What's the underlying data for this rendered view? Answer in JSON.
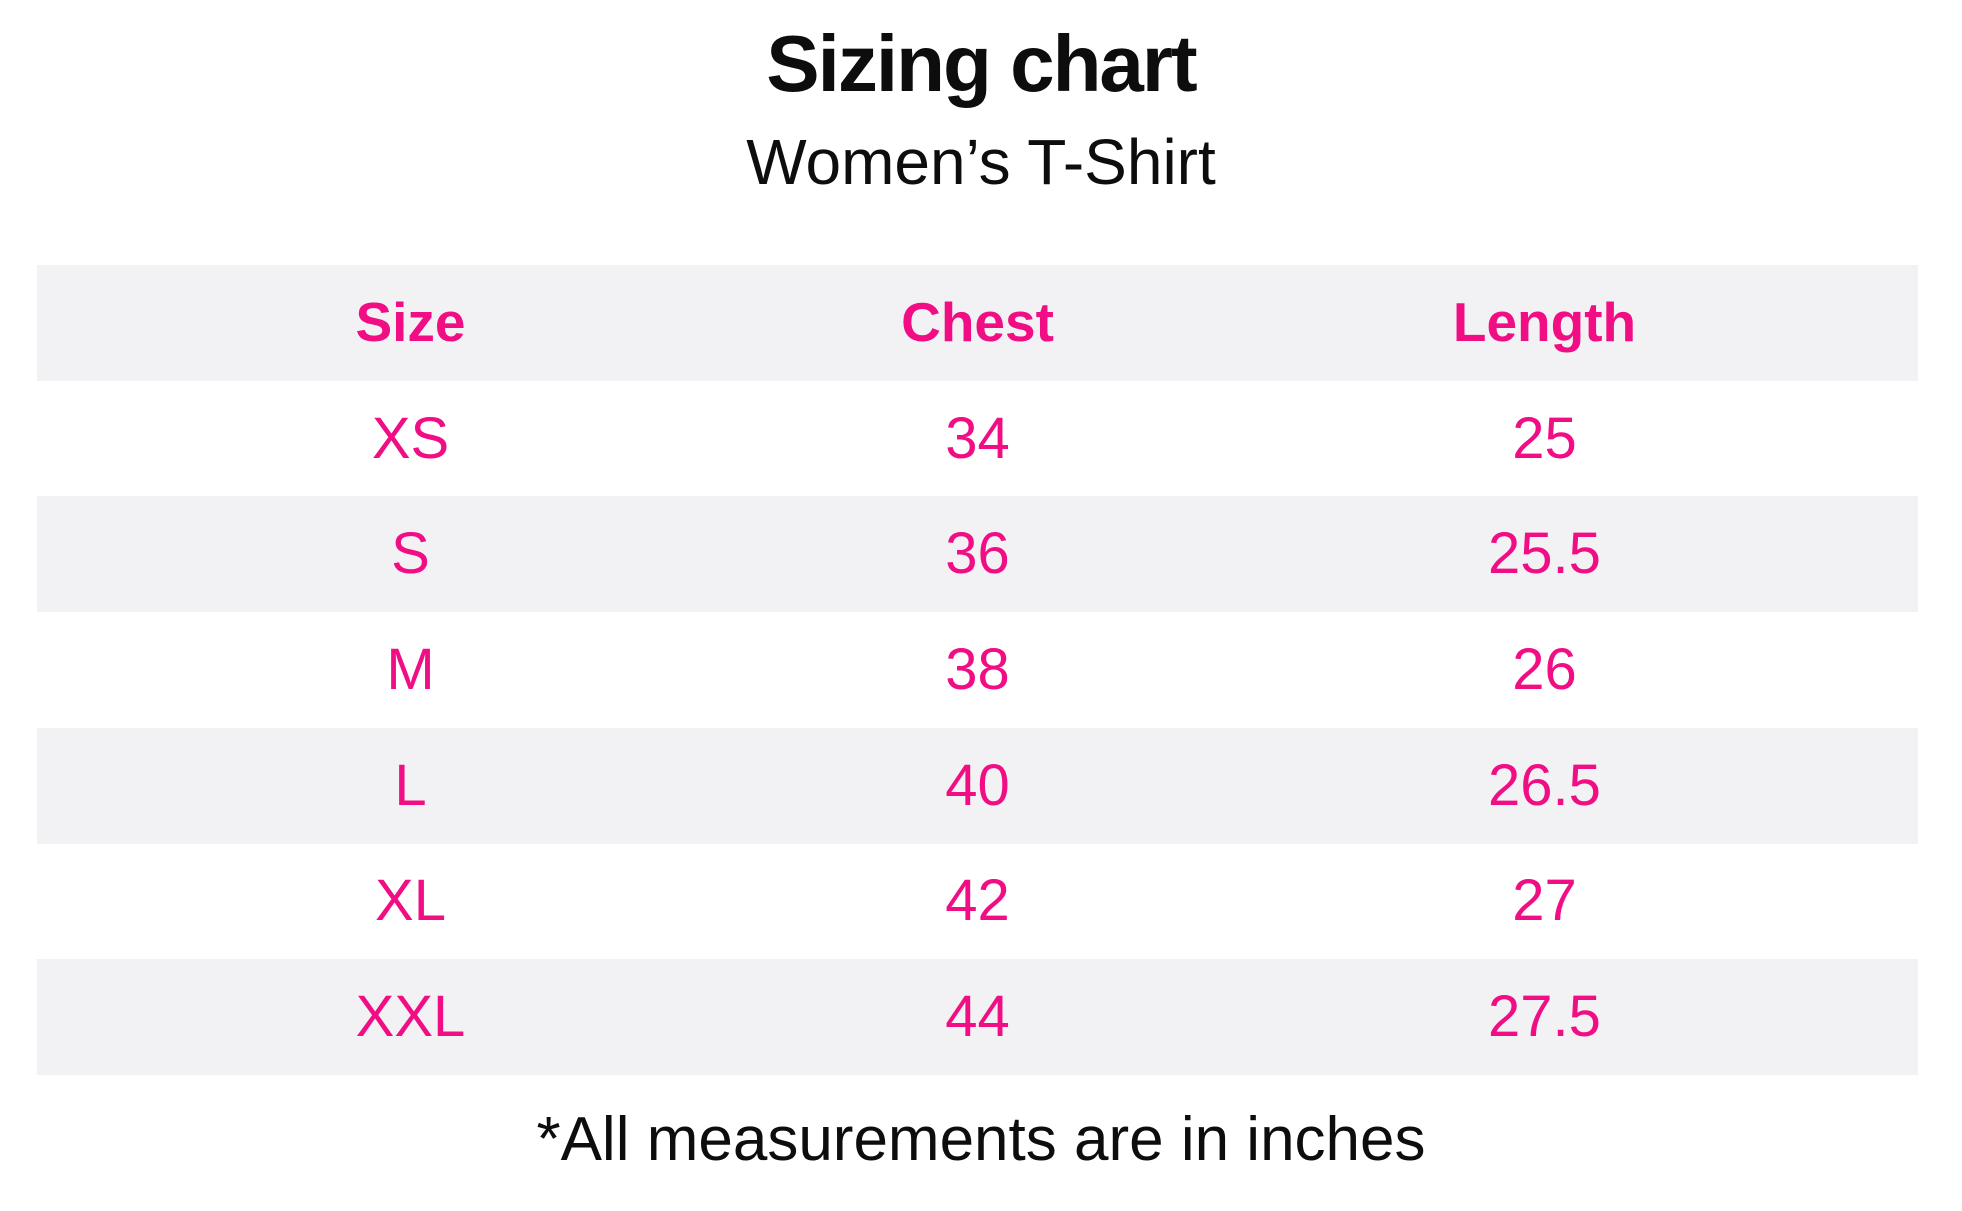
{
  "page": {
    "title": "Sizing chart",
    "subtitle": "Women’s T-Shirt",
    "footnote": "*All measurements are in inches"
  },
  "colors": {
    "accent_pink": "#f10d84",
    "row_alt_gray": "#f2f2f4",
    "text_black": "#0d0d0d",
    "background": "#ffffff"
  },
  "chart_data": {
    "type": "table",
    "title": "Sizing chart",
    "subtitle": "Women’s T-Shirt",
    "columns": [
      "Size",
      "Chest",
      "Length"
    ],
    "rows": [
      [
        "XS",
        "34",
        "25"
      ],
      [
        "S",
        "36",
        "25.5"
      ],
      [
        "M",
        "38",
        "26"
      ],
      [
        "L",
        "40",
        "26.5"
      ],
      [
        "XL",
        "42",
        "27"
      ],
      [
        "XXL",
        "44",
        "27.5"
      ]
    ],
    "units_note": "*All measurements are in inches",
    "layout_hints": {
      "header_background": "#f2f2f4",
      "alternating_rows": true,
      "alt_row_background": "#f2f2f4",
      "text_alignment": "center",
      "grid": false
    }
  }
}
